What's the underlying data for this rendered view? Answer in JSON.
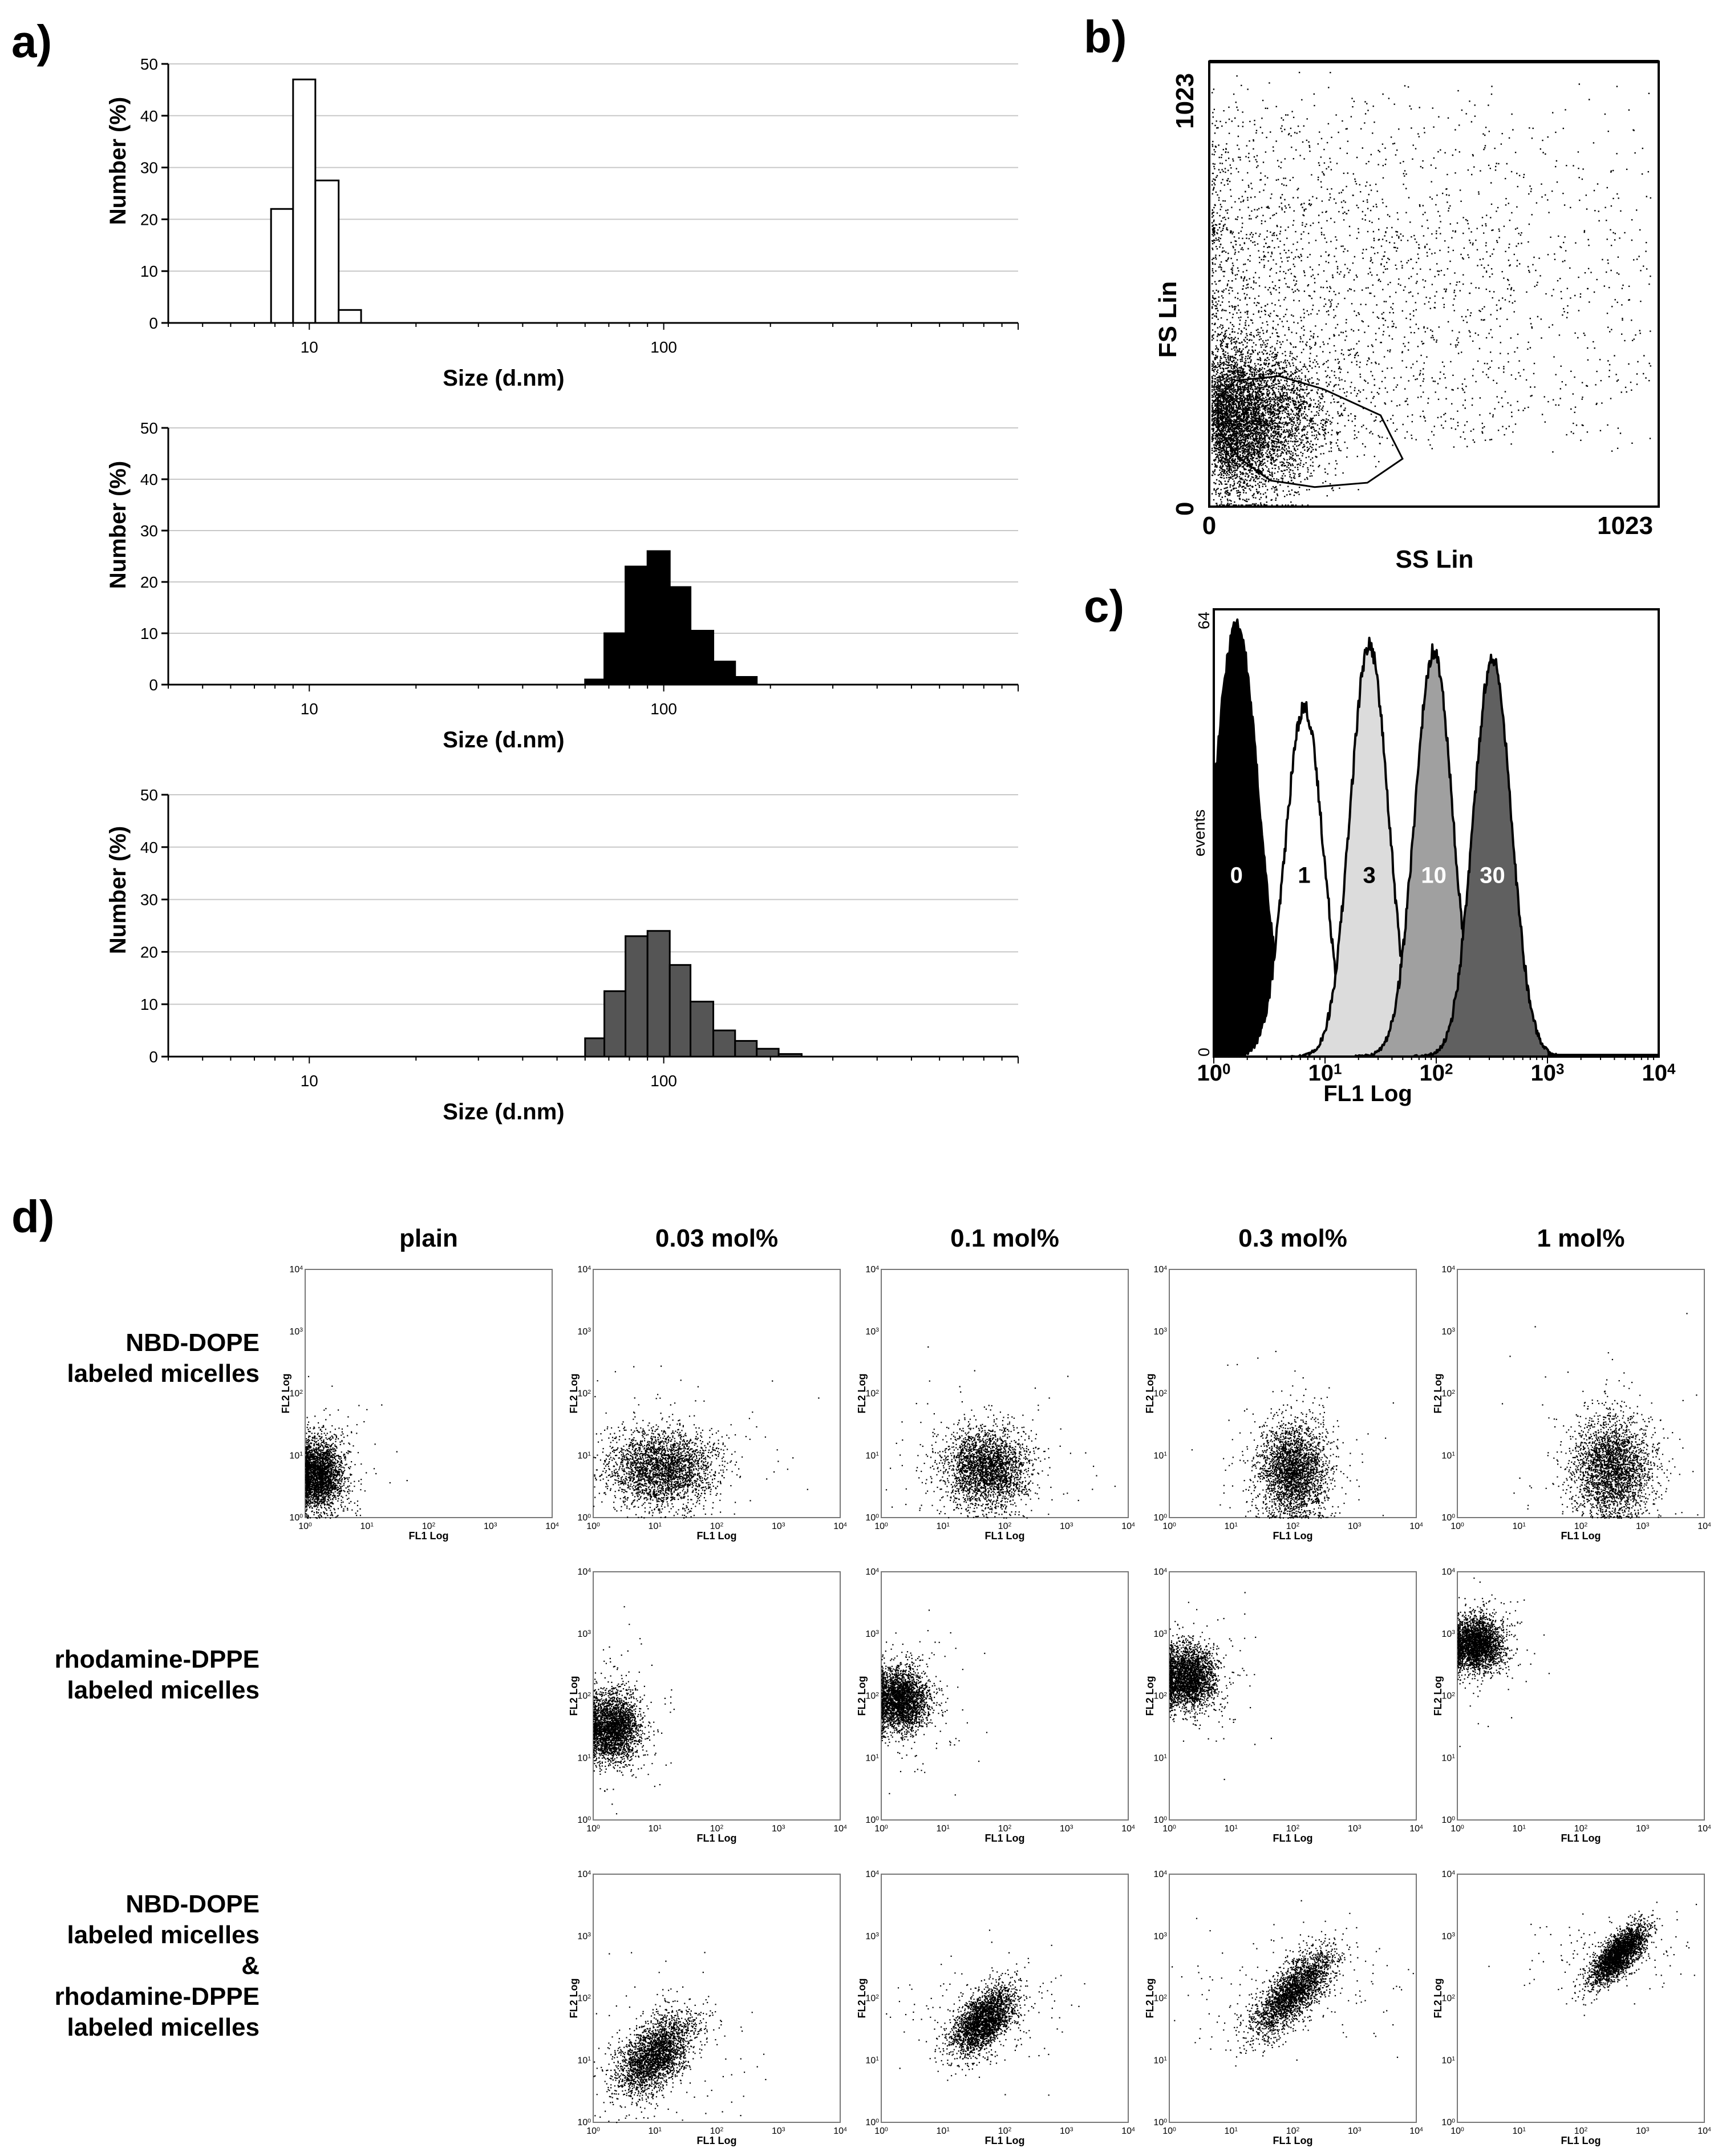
{
  "panel_letters": {
    "a": "a)",
    "b": "b)",
    "c": "c)",
    "d": "d)"
  },
  "chart_data": [
    {
      "id": "a1",
      "type": "bar",
      "xscale": "log",
      "xlabel": "Size (d.nm)",
      "ylabel": "Number (%)",
      "xlim": [
        4,
        1000
      ],
      "ylim": [
        0,
        50
      ],
      "xticks": [
        10,
        100
      ],
      "xtick_labels": [
        "10",
        "100"
      ],
      "yticks": [
        0,
        10,
        20,
        30,
        40,
        50
      ],
      "ytick_labels": [
        "0",
        "10",
        "20",
        "30",
        "40",
        "50"
      ],
      "fill": "#ffffff",
      "bins": [
        {
          "from": 7.8,
          "to": 9.0,
          "value": 22
        },
        {
          "from": 9.0,
          "to": 10.4,
          "value": 47
        },
        {
          "from": 10.4,
          "to": 12.1,
          "value": 27.5
        },
        {
          "from": 12.1,
          "to": 14.0,
          "value": 2.5
        }
      ]
    },
    {
      "id": "a2",
      "type": "bar",
      "xscale": "log",
      "xlabel": "Size (d.nm)",
      "ylabel": "Number (%)",
      "xlim": [
        4,
        1000
      ],
      "ylim": [
        0,
        50
      ],
      "xticks": [
        10,
        100
      ],
      "xtick_labels": [
        "10",
        "100"
      ],
      "yticks": [
        0,
        10,
        20,
        30,
        40,
        50
      ],
      "ytick_labels": [
        "0",
        "10",
        "20",
        "30",
        "40",
        "50"
      ],
      "fill": "#000000",
      "bins": [
        {
          "from": 60,
          "to": 68,
          "value": 1
        },
        {
          "from": 68,
          "to": 78,
          "value": 10
        },
        {
          "from": 78,
          "to": 90,
          "value": 23
        },
        {
          "from": 90,
          "to": 104,
          "value": 26
        },
        {
          "from": 104,
          "to": 119,
          "value": 19
        },
        {
          "from": 119,
          "to": 138,
          "value": 10.5
        },
        {
          "from": 138,
          "to": 159,
          "value": 4.5
        },
        {
          "from": 159,
          "to": 183,
          "value": 1.5
        }
      ]
    },
    {
      "id": "a3",
      "type": "bar",
      "xscale": "log",
      "xlabel": "Size (d.nm)",
      "ylabel": "Number (%)",
      "xlim": [
        4,
        1000
      ],
      "ylim": [
        0,
        50
      ],
      "xticks": [
        10,
        100
      ],
      "xtick_labels": [
        "10",
        "100"
      ],
      "yticks": [
        0,
        10,
        20,
        30,
        40,
        50
      ],
      "ytick_labels": [
        "0",
        "10",
        "20",
        "30",
        "40",
        "50"
      ],
      "fill": "#555555",
      "bins": [
        {
          "from": 60,
          "to": 68,
          "value": 3.5
        },
        {
          "from": 68,
          "to": 78,
          "value": 12.5
        },
        {
          "from": 78,
          "to": 90,
          "value": 23
        },
        {
          "from": 90,
          "to": 104,
          "value": 24
        },
        {
          "from": 104,
          "to": 119,
          "value": 17.5
        },
        {
          "from": 119,
          "to": 138,
          "value": 10.5
        },
        {
          "from": 138,
          "to": 159,
          "value": 5
        },
        {
          "from": 159,
          "to": 183,
          "value": 3
        },
        {
          "from": 183,
          "to": 211,
          "value": 1.5
        },
        {
          "from": 211,
          "to": 245,
          "value": 0.5
        }
      ]
    },
    {
      "id": "b",
      "type": "scatter",
      "xlabel": "SS Lin",
      "ylabel": "FS Lin",
      "xlim": [
        0,
        1023
      ],
      "ylim": [
        0,
        1023
      ],
      "xtick_labels": [
        "0",
        "1023"
      ],
      "ytick_labels": [
        "0",
        "1023"
      ],
      "gate": [
        [
          20,
          250
        ],
        [
          20,
          180
        ],
        [
          70,
          110
        ],
        [
          140,
          60
        ],
        [
          240,
          45
        ],
        [
          360,
          55
        ],
        [
          440,
          110
        ],
        [
          390,
          210
        ],
        [
          260,
          270
        ],
        [
          160,
          300
        ],
        [
          60,
          290
        ],
        [
          20,
          250
        ]
      ],
      "cluster": {
        "center": [
          70,
          200
        ],
        "events": 5000
      },
      "spread_events": 3000
    },
    {
      "id": "c",
      "type": "histogram",
      "xscale": "log",
      "xlabel": "FL1 Log",
      "ylabel": "events",
      "xlim": [
        1,
        10000
      ],
      "ylim": [
        0,
        64
      ],
      "xtick_labels": [
        "10^0",
        "10^1",
        "10^2",
        "10^3",
        "10^4"
      ],
      "ytick_labels": [
        "0",
        "64"
      ],
      "series": [
        {
          "name": "0",
          "peak_x": 1.6,
          "height": 62,
          "width_decades": 0.2,
          "fill": "#000000"
        },
        {
          "name": "1",
          "peak_x": 6.5,
          "height": 50,
          "width_decades": 0.17,
          "fill": "#ffffff"
        },
        {
          "name": "3",
          "peak_x": 25,
          "height": 59,
          "width_decades": 0.17,
          "fill": "#dcdcdc"
        },
        {
          "name": "10",
          "peak_x": 95,
          "height": 58,
          "width_decades": 0.17,
          "fill": "#a0a0a0"
        },
        {
          "name": "30",
          "peak_x": 320,
          "height": 57,
          "width_decades": 0.17,
          "fill": "#606060"
        }
      ]
    },
    {
      "id": "d",
      "type": "scatter-grid",
      "xlabel": "FL1 Log",
      "ylabel": "FL2 Log",
      "xlim": [
        1,
        10000
      ],
      "ylim": [
        1,
        10000
      ],
      "tick_labels": [
        "10^0",
        "10^1",
        "10^2",
        "10^3",
        "10^4"
      ],
      "columns": [
        "plain",
        "0.03 mol%",
        "0.1 mol%",
        "0.3 mol%",
        "1 mol%"
      ],
      "rows": [
        {
          "label": [
            "NBD-DOPE",
            "labeled micelles"
          ],
          "plots": [
            {
              "col": 0,
              "center_log": [
                0.2,
                0.7
              ],
              "spread_log": [
                0.2,
                0.28
              ]
            },
            {
              "col": 1,
              "center_log": [
                1.1,
                0.8
              ],
              "spread_log": [
                0.42,
                0.3
              ]
            },
            {
              "col": 2,
              "center_log": [
                1.7,
                0.8
              ],
              "spread_log": [
                0.35,
                0.32
              ]
            },
            {
              "col": 3,
              "center_log": [
                2.0,
                0.75
              ],
              "spread_log": [
                0.28,
                0.38
              ]
            },
            {
              "col": 4,
              "center_log": [
                2.5,
                0.8
              ],
              "spread_log": [
                0.32,
                0.4
              ]
            }
          ]
        },
        {
          "label": [
            "rhodamine-DPPE",
            "labeled micelles"
          ],
          "plots": [
            {
              "col": 1,
              "center_log": [
                0.3,
                1.5
              ],
              "spread_log": [
                0.22,
                0.28
              ]
            },
            {
              "col": 2,
              "center_log": [
                0.3,
                1.95
              ],
              "spread_log": [
                0.22,
                0.25
              ]
            },
            {
              "col": 3,
              "center_log": [
                0.3,
                2.3
              ],
              "spread_log": [
                0.22,
                0.25
              ]
            },
            {
              "col": 4,
              "center_log": [
                0.3,
                2.85
              ],
              "spread_log": [
                0.22,
                0.22
              ]
            }
          ]
        },
        {
          "label": [
            "NBD-DOPE",
            "labeled micelles",
            "&",
            "rhodamine-DPPE",
            "labeled micelles"
          ],
          "plots": [
            {
              "col": 1,
              "center_log": [
                1.0,
                1.1
              ],
              "spread_log": [
                0.35,
                0.25
              ],
              "diagonal": true
            },
            {
              "col": 2,
              "center_log": [
                1.65,
                1.65
              ],
              "spread_log": [
                0.3,
                0.2
              ],
              "diagonal": true
            },
            {
              "col": 3,
              "center_log": [
                2.0,
                2.1
              ],
              "spread_log": [
                0.4,
                0.2
              ],
              "diagonal": true
            },
            {
              "col": 4,
              "center_log": [
                2.6,
                2.7
              ],
              "spread_log": [
                0.28,
                0.14
              ],
              "diagonal": true
            }
          ]
        }
      ]
    }
  ]
}
